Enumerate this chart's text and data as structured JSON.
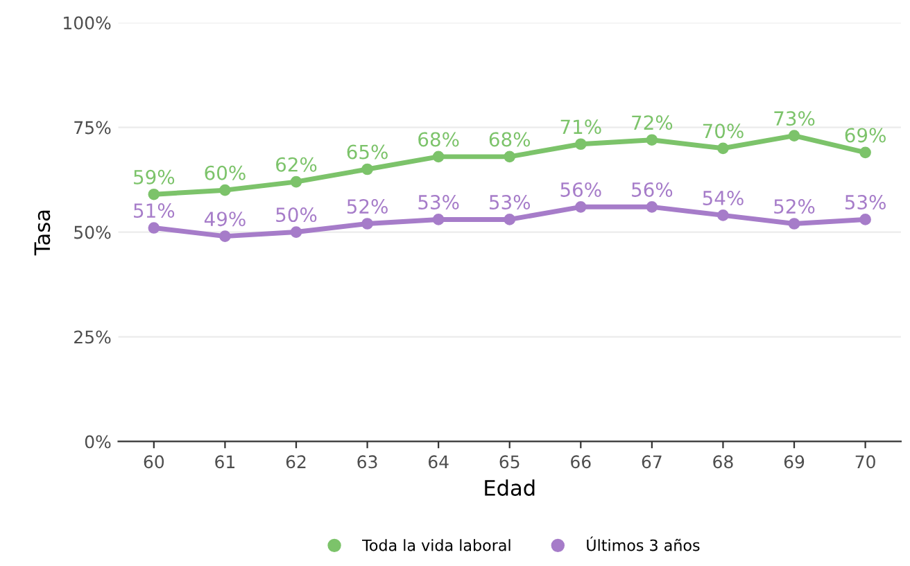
{
  "chart_data": {
    "type": "line",
    "xlabel": "Edad",
    "ylabel": "Tasa",
    "categories": [
      "60",
      "61",
      "62",
      "63",
      "64",
      "65",
      "66",
      "67",
      "68",
      "69",
      "70"
    ],
    "series": [
      {
        "name": "Toda la vida laboral",
        "color": "#7cc36a",
        "values": [
          59,
          60,
          62,
          65,
          68,
          68,
          71,
          72,
          70,
          73,
          69
        ],
        "value_labels": [
          "59%",
          "60%",
          "62%",
          "65%",
          "68%",
          "68%",
          "71%",
          "72%",
          "70%",
          "73%",
          "69%"
        ]
      },
      {
        "name": "Últimos 3 años",
        "color": "#a67cc9",
        "values": [
          51,
          49,
          50,
          52,
          53,
          53,
          56,
          56,
          54,
          52,
          53
        ],
        "value_labels": [
          "51%",
          "49%",
          "50%",
          "52%",
          "53%",
          "53%",
          "56%",
          "56%",
          "54%",
          "52%",
          "53%"
        ]
      }
    ],
    "ylim": [
      0,
      100
    ],
    "yticks": [
      {
        "value": 0,
        "label": "0%"
      },
      {
        "value": 25,
        "label": "25%"
      },
      {
        "value": 50,
        "label": "50%"
      },
      {
        "value": 75,
        "label": "75%"
      },
      {
        "value": 100,
        "label": "100%"
      }
    ],
    "grid": "y",
    "legend": "bottom",
    "marker": "circle",
    "line_style": "solid"
  }
}
